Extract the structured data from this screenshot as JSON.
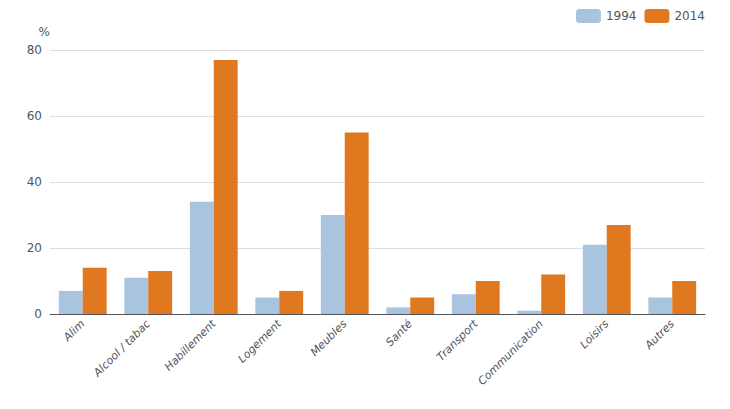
{
  "chart_data": {
    "type": "bar",
    "ylabel": "%",
    "categories": [
      "Alim",
      "Alcool / tabac",
      "Habillement",
      "Logement",
      "Meubles",
      "Santé",
      "Transport",
      "Communication",
      "Loisirs",
      "Autres"
    ],
    "series": [
      {
        "name": "1994",
        "color": "#a8c4df",
        "values": [
          7,
          11,
          34,
          5,
          30,
          2,
          6,
          1,
          21,
          5
        ]
      },
      {
        "name": "2014",
        "color": "#e07820",
        "values": [
          14,
          13,
          77,
          7,
          55,
          5,
          10,
          12,
          27,
          10
        ]
      }
    ],
    "ylim": [
      0,
      80
    ],
    "yticks": [
      0,
      20,
      40,
      60,
      80
    ],
    "grid": true,
    "legend": "upper right"
  }
}
